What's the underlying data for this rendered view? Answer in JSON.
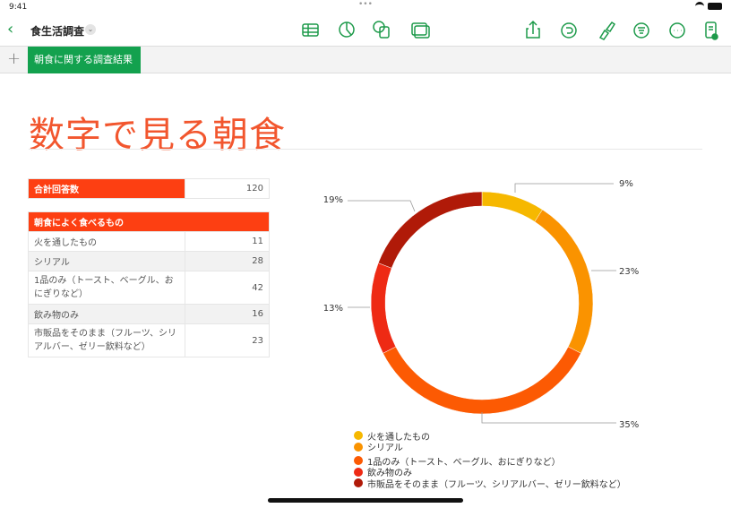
{
  "status": {
    "time": "9:41"
  },
  "toolbar": {
    "doc_title": "食生活調査",
    "icons": [
      "table-icon",
      "chart-icon",
      "shape-icon",
      "media-icon",
      "share-icon",
      "undo-icon",
      "format-brush-icon",
      "organize-icon",
      "more-icon",
      "document-settings-icon"
    ]
  },
  "sheet_tab": {
    "label": "朝食に関する調査結果"
  },
  "page_title": "数字で見る朝食",
  "total_table": {
    "label": "合計回答数",
    "value": "120"
  },
  "main_table": {
    "header": "朝食によく食べるもの",
    "rows": [
      {
        "label": "火を通したもの",
        "value": "11"
      },
      {
        "label": "シリアル",
        "value": "28"
      },
      {
        "label": "1品のみ（トースト、ベーグル、おにぎりなど）",
        "value": "42"
      },
      {
        "label": "飲み物のみ",
        "value": "16"
      },
      {
        "label": "市販品をそのまま（フルーツ、シリアルバー、ゼリー飲料など）",
        "value": "23"
      }
    ]
  },
  "chart_data": {
    "type": "pie",
    "style": "donut",
    "legend": "bottom",
    "categories": [
      "火を通したもの",
      "シリアル",
      "1品のみ（トースト、ベーグル、おにぎりなど）",
      "飲み物のみ",
      "市販品をそのまま（フルーツ、シリアルバー、ゼリー飲料など）"
    ],
    "values": [
      11,
      28,
      42,
      16,
      23
    ],
    "labels": [
      "9%",
      "23%",
      "35%",
      "13%",
      "19%"
    ],
    "colors": [
      "#F6B800",
      "#FA9300",
      "#FC5A03",
      "#EE2A14",
      "#B01A08"
    ]
  }
}
